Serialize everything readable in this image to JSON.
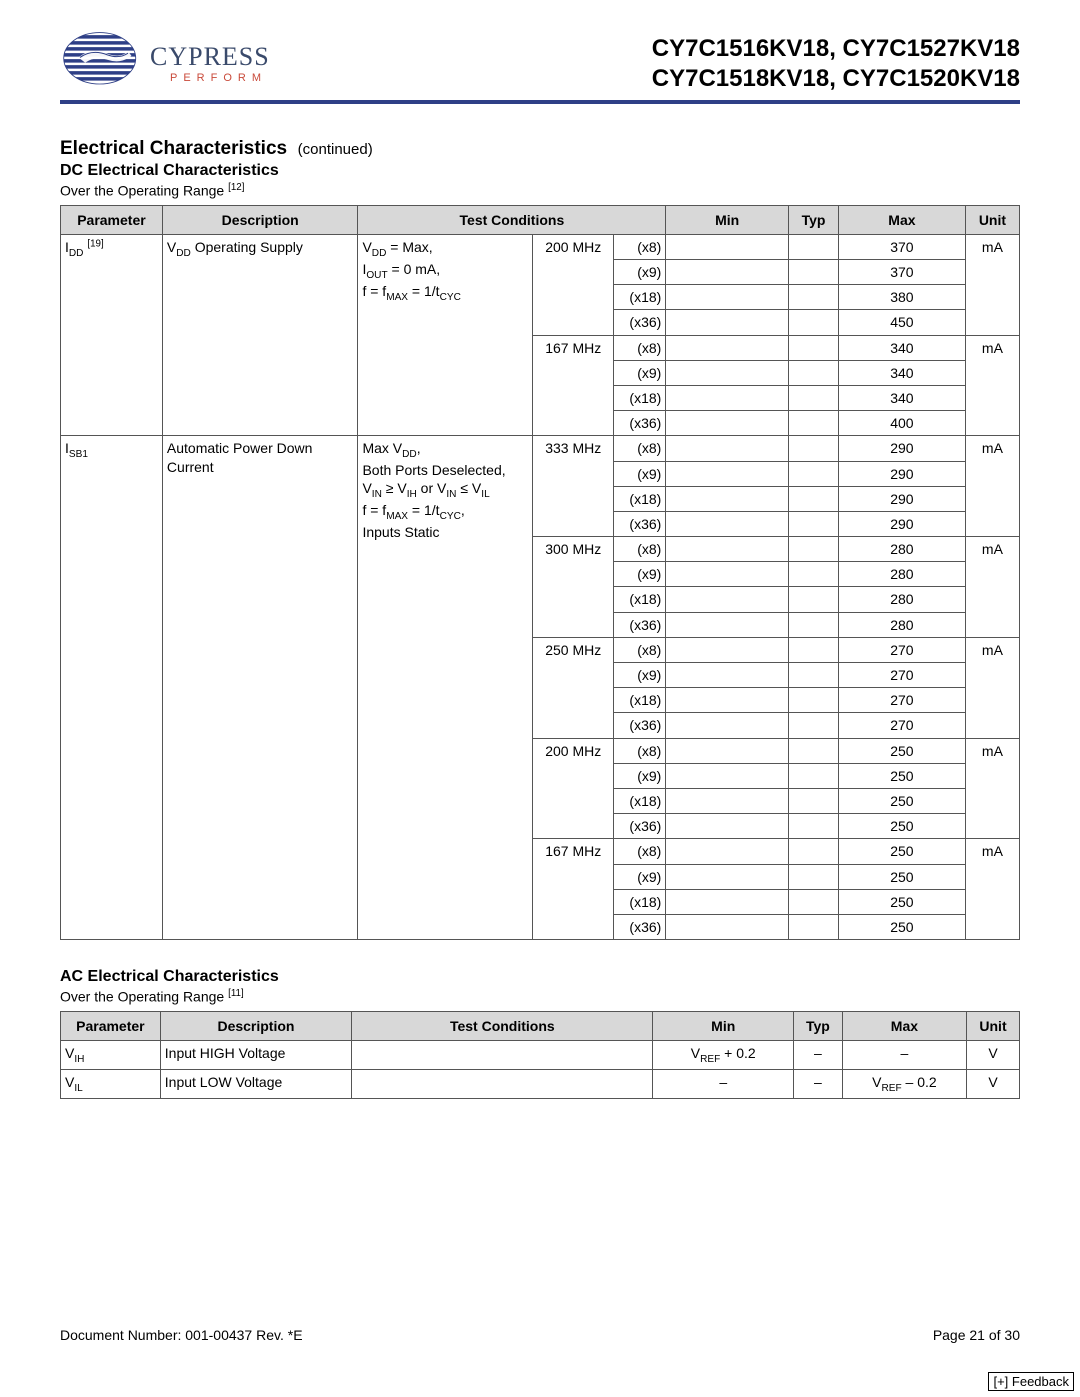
{
  "header": {
    "brand": "CYPRESS",
    "tagline": "PERFORM",
    "parts_line1": "CY7C1516KV18, CY7C1527KV18",
    "parts_line2": "CY7C1518KV18, CY7C1520KV18"
  },
  "styles": {
    "rule_color": "#2e3f86",
    "brand_color": "#3a4a6b",
    "tagline_color": "#c94a3a",
    "th_bg": "#d8d8d8",
    "border_color": "#555555",
    "page_bg": "#ffffff"
  },
  "section1": {
    "title": "Electrical Characteristics",
    "cont": "(continued)",
    "subtitle": "DC Electrical Characteristics",
    "range_note_prefix": "Over the Operating Range ",
    "range_note_ref": "[12]"
  },
  "dc_table": {
    "headers": {
      "param": "Parameter",
      "desc": "Description",
      "tc": "Test Conditions",
      "min": "Min",
      "typ": "Typ",
      "max": "Max",
      "unit": "Unit"
    },
    "groups": [
      {
        "param_html": "I<sub>DD</sub> <sup>[19]</sup>",
        "desc_html": "V<sub>DD</sub> Operating Supply",
        "tc_html": "V<sub>DD</sub> = Max,<br>I<sub>OUT</sub> = 0 mA,<br>f = f<sub>MAX</sub> = 1/t<sub>CYC</sub>",
        "freqs": [
          {
            "freq": "200 MHz",
            "unit": "mA",
            "rows": [
              {
                "w": "(x8)",
                "max": "370"
              },
              {
                "w": "(x9)",
                "max": "370"
              },
              {
                "w": "(x18)",
                "max": "380"
              },
              {
                "w": "(x36)",
                "max": "450"
              }
            ]
          },
          {
            "freq": "167 MHz",
            "unit": "mA",
            "rows": [
              {
                "w": "(x8)",
                "max": "340"
              },
              {
                "w": "(x9)",
                "max": "340"
              },
              {
                "w": "(x18)",
                "max": "340"
              },
              {
                "w": "(x36)",
                "max": "400"
              }
            ]
          }
        ]
      },
      {
        "param_html": "I<sub>SB1</sub>",
        "desc_html": "Automatic Power Down Current",
        "tc_html": "Max V<sub>DD</sub>,<br>Both Ports Deselected,<br>V<sub>IN</sub> ≥ V<sub>IH</sub> or V<sub>IN</sub> ≤ V<sub>IL</sub><br>f = f<sub>MAX</sub> = 1/t<sub>CYC</sub>,<br>Inputs Static",
        "freqs": [
          {
            "freq": "333 MHz",
            "unit": "mA",
            "rows": [
              {
                "w": "(x8)",
                "max": "290"
              },
              {
                "w": "(x9)",
                "max": "290"
              },
              {
                "w": "(x18)",
                "max": "290"
              },
              {
                "w": "(x36)",
                "max": "290"
              }
            ]
          },
          {
            "freq": "300 MHz",
            "unit": "mA",
            "rows": [
              {
                "w": "(x8)",
                "max": "280"
              },
              {
                "w": "(x9)",
                "max": "280"
              },
              {
                "w": "(x18)",
                "max": "280"
              },
              {
                "w": "(x36)",
                "max": "280"
              }
            ]
          },
          {
            "freq": "250 MHz",
            "unit": "mA",
            "rows": [
              {
                "w": "(x8)",
                "max": "270"
              },
              {
                "w": "(x9)",
                "max": "270"
              },
              {
                "w": "(x18)",
                "max": "270"
              },
              {
                "w": "(x36)",
                "max": "270"
              }
            ]
          },
          {
            "freq": "200 MHz",
            "unit": "mA",
            "rows": [
              {
                "w": "(x8)",
                "max": "250"
              },
              {
                "w": "(x9)",
                "max": "250"
              },
              {
                "w": "(x18)",
                "max": "250"
              },
              {
                "w": "(x36)",
                "max": "250"
              }
            ]
          },
          {
            "freq": "167 MHz",
            "unit": "mA",
            "rows": [
              {
                "w": "(x8)",
                "max": "250"
              },
              {
                "w": "(x9)",
                "max": "250"
              },
              {
                "w": "(x18)",
                "max": "250"
              },
              {
                "w": "(x36)",
                "max": "250"
              }
            ]
          }
        ]
      }
    ]
  },
  "section2": {
    "subtitle": "AC Electrical Characteristics",
    "range_note_prefix": "Over the Operating Range ",
    "range_note_ref": "[11]"
  },
  "ac_table": {
    "headers": {
      "param": "Parameter",
      "desc": "Description",
      "tc": "Test Conditions",
      "min": "Min",
      "typ": "Typ",
      "max": "Max",
      "unit": "Unit"
    },
    "rows": [
      {
        "param_html": "V<sub>IH</sub>",
        "desc": "Input HIGH Voltage",
        "tc": "",
        "min_html": "V<sub>REF</sub> + 0.2",
        "typ": "–",
        "max_html": "–",
        "unit": "V"
      },
      {
        "param_html": "V<sub>IL</sub>",
        "desc": "Input LOW Voltage",
        "tc": "",
        "min_html": "–",
        "typ": "–",
        "max_html": "V<sub>REF</sub> – 0.2",
        "unit": "V"
      }
    ]
  },
  "footer": {
    "docnum": "Document Number: 001-00437 Rev. *E",
    "page": "Page 21 of 30",
    "feedback": "[+] Feedback"
  }
}
